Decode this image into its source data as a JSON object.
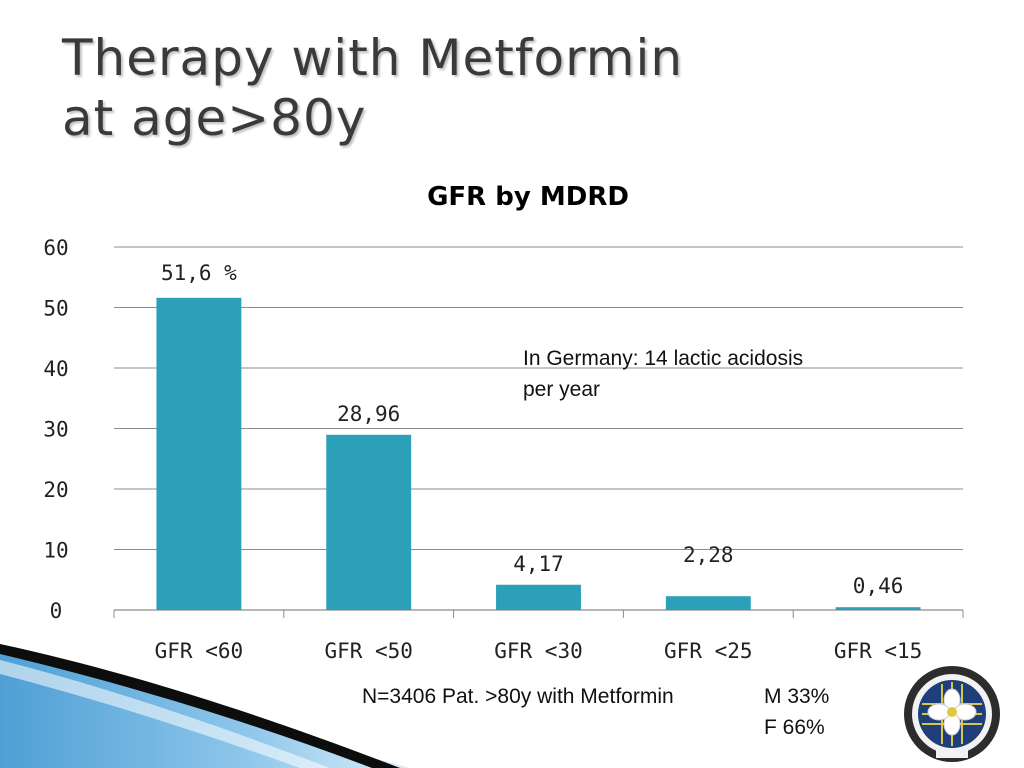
{
  "slide": {
    "title_line1": "Therapy with Metformin",
    "title_line2": "at age>80y"
  },
  "chart_data": {
    "type": "bar",
    "title": "GFR by MDRD",
    "categories": [
      "GFR <60",
      "GFR <50",
      "GFR <30",
      "GFR <25",
      "GFR <15"
    ],
    "values": [
      51.6,
      28.96,
      4.17,
      2.28,
      0.46
    ],
    "data_labels": [
      "51,6 %",
      "28,96",
      "4,17",
      "2,28",
      "0,46"
    ],
    "ylim": [
      0,
      60
    ],
    "yticks": [
      0,
      10,
      20,
      30,
      40,
      50,
      60
    ],
    "grid": true,
    "bar_color": "#2ca0b8",
    "grid_color": "#8c8c8c"
  },
  "annotations": {
    "germany_line1": "In Germany: 14 lactic acidosis",
    "germany_line2": "per year",
    "footer_n": "N=3406 Pat. >80y with Metformin",
    "sex_m": "M 33%",
    "sex_f": "F 66%"
  },
  "colors": {
    "accent": "#2ca0b8",
    "title_text": "#3a3a3a",
    "swoosh_blue": "#4f9fd5"
  },
  "logo": {
    "name": "iagg-logo"
  }
}
